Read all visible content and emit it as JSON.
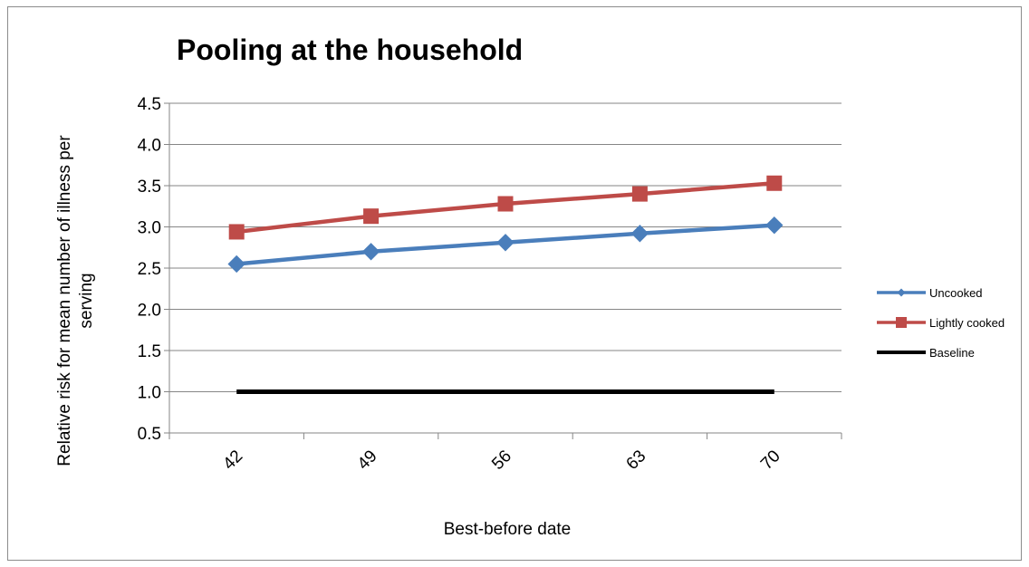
{
  "chart_data": {
    "type": "line",
    "title": "Pooling at the household",
    "xlabel": "Best-before date",
    "ylabel_line1": "Relative risk for mean number of illness per",
    "ylabel_line2": "serving",
    "categories": [
      "42",
      "49",
      "56",
      "63",
      "70"
    ],
    "ylim": [
      0.5,
      4.5
    ],
    "yticks": [
      "0.5",
      "1.0",
      "1.5",
      "2.0",
      "2.5",
      "3.0",
      "3.5",
      "4.0",
      "4.5"
    ],
    "grid": true,
    "legend_position": "right",
    "series": [
      {
        "name": "Uncooked",
        "values": [
          2.55,
          2.7,
          2.81,
          2.92,
          3.02
        ],
        "color": "#4a7ebb",
        "marker": "diamond"
      },
      {
        "name": "Lightly cooked",
        "values": [
          2.94,
          3.13,
          3.28,
          3.4,
          3.53
        ],
        "color": "#be4b48",
        "marker": "square"
      },
      {
        "name": "Baseline",
        "values": [
          1.0,
          1.0,
          1.0,
          1.0,
          1.0
        ],
        "color": "#000000",
        "marker": "none"
      }
    ]
  }
}
